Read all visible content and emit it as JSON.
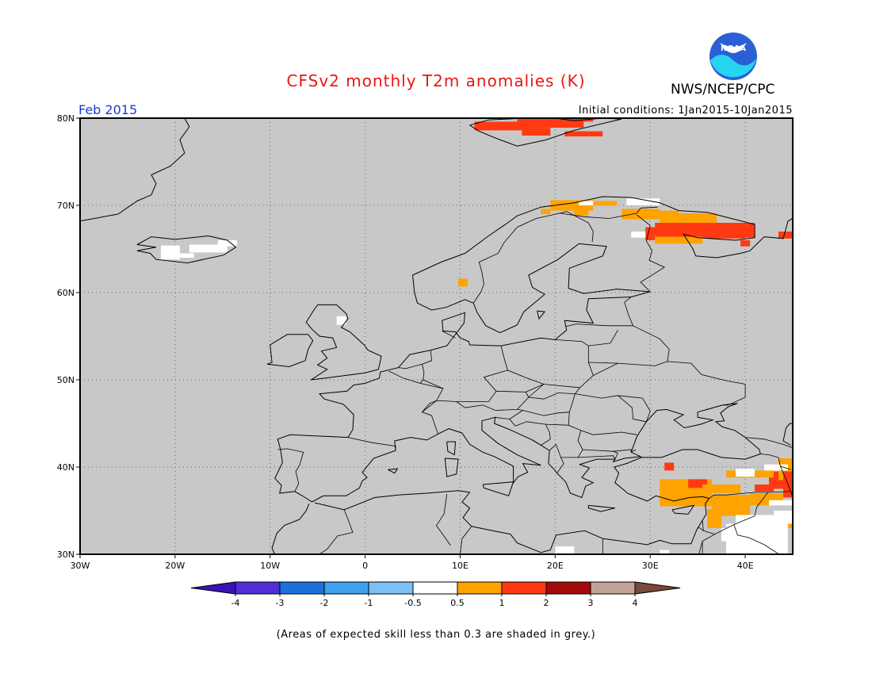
{
  "header": {
    "title": "CFSv2 monthly T2m anomalies (K)",
    "agency": "NWS/NCEP/CPC",
    "logo_text": "NOAA",
    "period": "Feb 2015",
    "initial_conditions": "Initial conditions: 1Jan2015-10Jan2015"
  },
  "map": {
    "background_color": "#c8c8c8",
    "coast_color": "#000000",
    "lon_range": [
      -30,
      45
    ],
    "lat_range": [
      30,
      80
    ],
    "lat_labels": [
      "80N",
      "70N",
      "60N",
      "50N",
      "40N",
      "30N"
    ],
    "lon_labels": [
      "30W",
      "20W",
      "10W",
      "0",
      "10E",
      "20E",
      "30E",
      "40E"
    ]
  },
  "colorbar": {
    "labels": [
      "-4",
      "-3",
      "-2",
      "-1",
      "-0.5",
      "0.5",
      "1",
      "2",
      "3",
      "4"
    ],
    "colors": [
      "#3a14b5",
      "#5030d6",
      "#1d6fdc",
      "#3ea0f0",
      "#7cc0f5",
      "#ffffff",
      "#fea300",
      "#ff3a12",
      "#a30a0a",
      "#c3a394",
      "#7a4a3a"
    ]
  },
  "footnote": "(Areas of expected skill less than 0.3 are shaded in grey.)"
}
